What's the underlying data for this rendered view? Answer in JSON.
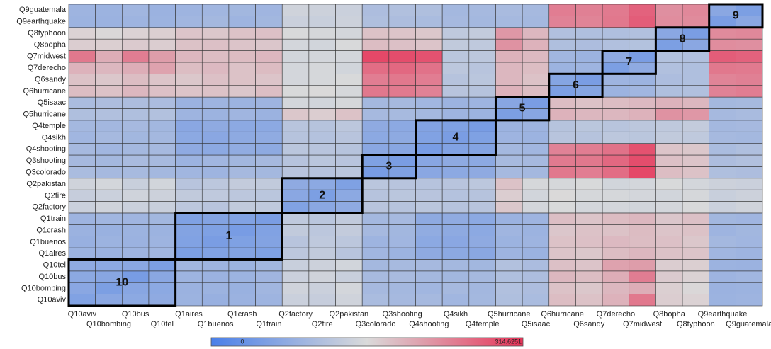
{
  "chart_data": {
    "type": "heatmap",
    "categories": [
      "Q10aviv",
      "Q10bombing",
      "Q10bus",
      "Q10tel",
      "Q1aires",
      "Q1buenos",
      "Q1crash",
      "Q1train",
      "Q2factory",
      "Q2fire",
      "Q2pakistan",
      "Q3colorado",
      "Q3shooting",
      "Q4shooting",
      "Q4sikh",
      "Q4temple",
      "Q5hurricane",
      "Q5isaac",
      "Q6hurricane",
      "Q6sandy",
      "Q7derecho",
      "Q7midwest",
      "Q8bopha",
      "Q8typhoon",
      "Q9earthquake",
      "Q9guatemala"
    ],
    "values": [
      [
        60,
        70,
        72,
        75,
        90,
        85,
        88,
        92,
        140,
        135,
        145,
        105,
        100,
        100,
        95,
        98,
        110,
        105,
        185,
        180,
        195,
        250,
        170,
        165,
        90,
        92
      ],
      [
        70,
        55,
        68,
        72,
        88,
        90,
        86,
        95,
        145,
        140,
        150,
        100,
        98,
        95,
        100,
        97,
        112,
        108,
        180,
        175,
        190,
        200,
        168,
        160,
        88,
        90
      ],
      [
        72,
        68,
        50,
        70,
        92,
        88,
        90,
        94,
        140,
        145,
        138,
        102,
        104,
        98,
        96,
        100,
        110,
        108,
        190,
        185,
        200,
        245,
        172,
        165,
        92,
        95
      ],
      [
        75,
        72,
        70,
        55,
        95,
        92,
        90,
        96,
        138,
        142,
        148,
        98,
        102,
        100,
        98,
        96,
        114,
        106,
        182,
        178,
        210,
        215,
        170,
        168,
        90,
        88
      ],
      [
        90,
        88,
        92,
        95,
        55,
        60,
        62,
        58,
        125,
        130,
        120,
        95,
        90,
        75,
        72,
        70,
        92,
        88,
        178,
        175,
        185,
        190,
        180,
        178,
        95,
        92
      ],
      [
        85,
        90,
        88,
        92,
        60,
        52,
        58,
        62,
        120,
        128,
        125,
        92,
        95,
        72,
        70,
        75,
        90,
        92,
        180,
        182,
        188,
        185,
        182,
        175,
        98,
        95
      ],
      [
        88,
        86,
        90,
        90,
        62,
        58,
        50,
        60,
        130,
        125,
        132,
        100,
        96,
        78,
        74,
        72,
        94,
        90,
        176,
        180,
        180,
        186,
        178,
        180,
        92,
        96
      ],
      [
        92,
        95,
        94,
        96,
        58,
        62,
        60,
        52,
        128,
        122,
        130,
        98,
        100,
        74,
        76,
        72,
        88,
        92,
        184,
        178,
        186,
        190,
        176,
        182,
        96,
        94
      ],
      [
        140,
        145,
        140,
        138,
        125,
        120,
        130,
        128,
        60,
        70,
        75,
        120,
        118,
        122,
        118,
        120,
        175,
        150,
        155,
        150,
        150,
        148,
        150,
        155,
        140,
        145
      ],
      [
        135,
        140,
        145,
        142,
        130,
        128,
        125,
        122,
        70,
        55,
        72,
        118,
        122,
        120,
        116,
        118,
        170,
        148,
        158,
        152,
        152,
        150,
        148,
        152,
        138,
        142
      ],
      [
        145,
        150,
        138,
        148,
        120,
        125,
        132,
        130,
        75,
        72,
        58,
        122,
        120,
        118,
        120,
        124,
        180,
        152,
        152,
        155,
        148,
        150,
        155,
        150,
        142,
        140
      ],
      [
        105,
        100,
        102,
        98,
        95,
        92,
        100,
        98,
        120,
        118,
        122,
        50,
        58,
        70,
        72,
        75,
        100,
        98,
        250,
        245,
        260,
        295,
        185,
        180,
        110,
        108
      ],
      [
        100,
        98,
        104,
        102,
        90,
        95,
        96,
        100,
        118,
        122,
        120,
        58,
        52,
        68,
        74,
        72,
        102,
        100,
        248,
        250,
        265,
        290,
        182,
        178,
        108,
        112
      ],
      [
        100,
        95,
        98,
        100,
        75,
        72,
        78,
        74,
        122,
        120,
        118,
        70,
        68,
        50,
        60,
        62,
        98,
        95,
        240,
        245,
        255,
        285,
        178,
        175,
        105,
        110
      ],
      [
        95,
        100,
        96,
        98,
        72,
        70,
        74,
        76,
        118,
        116,
        120,
        72,
        74,
        60,
        52,
        58,
        92,
        90,
        120,
        118,
        125,
        122,
        130,
        128,
        100,
        98
      ],
      [
        98,
        97,
        100,
        96,
        70,
        75,
        72,
        72,
        120,
        118,
        124,
        75,
        72,
        62,
        58,
        50,
        90,
        92,
        118,
        122,
        120,
        125,
        128,
        132,
        98,
        100
      ],
      [
        110,
        112,
        110,
        114,
        92,
        90,
        94,
        88,
        175,
        170,
        180,
        100,
        102,
        98,
        92,
        90,
        55,
        68,
        195,
        190,
        190,
        195,
        225,
        220,
        100,
        104
      ],
      [
        105,
        108,
        108,
        106,
        88,
        92,
        90,
        92,
        150,
        148,
        152,
        98,
        100,
        95,
        90,
        92,
        68,
        52,
        185,
        180,
        185,
        188,
        195,
        190,
        98,
        100
      ],
      [
        185,
        180,
        190,
        182,
        178,
        180,
        176,
        184,
        155,
        158,
        152,
        250,
        248,
        240,
        120,
        118,
        195,
        185,
        55,
        65,
        90,
        95,
        110,
        112,
        240,
        245
      ],
      [
        180,
        175,
        185,
        178,
        175,
        182,
        180,
        178,
        150,
        152,
        155,
        245,
        250,
        245,
        118,
        122,
        190,
        180,
        65,
        52,
        92,
        90,
        108,
        110,
        238,
        242
      ],
      [
        195,
        190,
        200,
        210,
        185,
        188,
        180,
        186,
        150,
        152,
        148,
        260,
        265,
        255,
        125,
        120,
        190,
        185,
        90,
        92,
        55,
        75,
        112,
        110,
        250,
        248
      ],
      [
        250,
        200,
        245,
        215,
        190,
        185,
        186,
        190,
        148,
        150,
        150,
        295,
        290,
        285,
        122,
        125,
        195,
        188,
        95,
        90,
        75,
        52,
        115,
        112,
        275,
        270
      ],
      [
        170,
        168,
        172,
        170,
        180,
        182,
        178,
        176,
        150,
        148,
        155,
        185,
        182,
        178,
        130,
        128,
        225,
        195,
        110,
        108,
        112,
        115,
        55,
        70,
        230,
        228
      ],
      [
        165,
        160,
        165,
        168,
        178,
        175,
        180,
        182,
        155,
        152,
        150,
        180,
        178,
        175,
        128,
        132,
        220,
        190,
        112,
        110,
        110,
        112,
        70,
        52,
        232,
        235
      ],
      [
        90,
        88,
        92,
        90,
        95,
        98,
        92,
        96,
        140,
        138,
        142,
        110,
        108,
        105,
        100,
        98,
        100,
        98,
        240,
        238,
        250,
        275,
        230,
        232,
        52,
        70
      ],
      [
        92,
        90,
        95,
        88,
        92,
        95,
        96,
        94,
        145,
        142,
        140,
        108,
        112,
        110,
        98,
        100,
        104,
        100,
        245,
        242,
        248,
        270,
        228,
        235,
        70,
        55
      ]
    ],
    "zlim": [
      0,
      314.6251
    ],
    "colormap": [
      "#4a7fe8",
      "#dadada",
      "#e63358"
    ],
    "blocks": [
      "10",
      "1",
      "2",
      "3",
      "4",
      "5",
      "6",
      "7",
      "8",
      "9"
    ]
  }
}
